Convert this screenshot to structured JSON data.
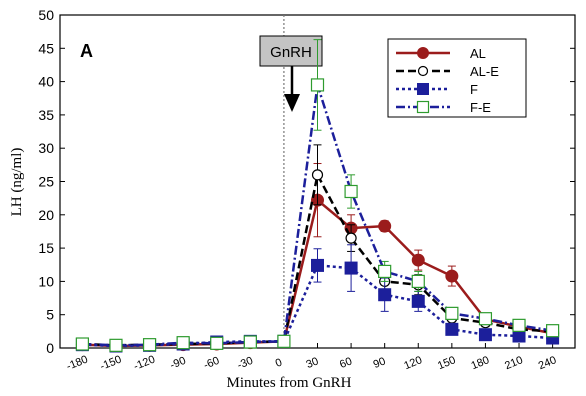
{
  "chart_data": {
    "type": "line",
    "panel_label": "A",
    "xlabel": "Minutes from GnRH",
    "ylabel": "LH (ng/ml)",
    "x_ticks": [
      -180,
      -150,
      -120,
      -90,
      -60,
      -30,
      0,
      30,
      60,
      90,
      120,
      150,
      180,
      210,
      240
    ],
    "y_ticks": [
      0,
      5,
      10,
      15,
      20,
      25,
      30,
      35,
      40,
      45,
      50
    ],
    "xlim": [
      -200,
      260
    ],
    "ylim": [
      0,
      50
    ],
    "annotation": {
      "text": "GnRH",
      "x": 0
    },
    "legend_position": "top-right",
    "series": [
      {
        "name": "AL",
        "color": "#9b1c1c",
        "dash": "solid",
        "marker": "filled-circle",
        "x": [
          -180,
          -150,
          -120,
          -90,
          -60,
          -30,
          0,
          30,
          60,
          90,
          120,
          150,
          180,
          210,
          240
        ],
        "y": [
          0.5,
          0.3,
          0.4,
          0.5,
          0.6,
          0.8,
          1.0,
          22.2,
          18.0,
          18.3,
          13.2,
          10.8,
          4.3,
          3.2,
          2.2
        ],
        "err": [
          0.3,
          0.2,
          0.2,
          0.3,
          0.3,
          0.3,
          0.4,
          5.5,
          2.0,
          0.8,
          1.5,
          1.5,
          0.6,
          0.5,
          0.4
        ]
      },
      {
        "name": "AL-E",
        "color": "#000000",
        "dash": "dash",
        "marker": "open-circle",
        "x": [
          -180,
          -150,
          -120,
          -90,
          -60,
          -30,
          0,
          30,
          60,
          90,
          120,
          150,
          180,
          210,
          240
        ],
        "y": [
          0.6,
          0.4,
          0.5,
          0.6,
          0.7,
          0.9,
          1.0,
          26.0,
          16.5,
          10.0,
          9.5,
          4.5,
          3.8,
          2.8,
          2.5
        ],
        "err": [
          0.3,
          0.2,
          0.2,
          0.3,
          0.3,
          0.3,
          0.4,
          4.5,
          2.0,
          1.5,
          1.5,
          0.8,
          0.6,
          0.5,
          0.4
        ]
      },
      {
        "name": "F",
        "color": "#1c1f9b",
        "dash": "dot",
        "marker": "filled-square",
        "x": [
          -180,
          -150,
          -120,
          -90,
          -60,
          -30,
          0,
          30,
          60,
          90,
          120,
          150,
          180,
          210,
          240
        ],
        "y": [
          0.5,
          0.3,
          0.4,
          0.6,
          0.9,
          1.0,
          1.0,
          12.4,
          12.0,
          8.0,
          7.0,
          2.8,
          2.0,
          1.8,
          1.5
        ],
        "err": [
          0.3,
          0.2,
          0.2,
          0.3,
          0.3,
          0.3,
          0.4,
          2.5,
          3.5,
          2.5,
          1.5,
          0.8,
          0.5,
          0.4,
          0.4
        ]
      },
      {
        "name": "F-E",
        "color": "#1c1f9b",
        "dash": "dashdot",
        "marker": "open-square",
        "marker_color": "#2e9b2e",
        "x": [
          -180,
          -150,
          -120,
          -90,
          -60,
          -30,
          0,
          30,
          60,
          90,
          120,
          150,
          180,
          210,
          240
        ],
        "y": [
          0.6,
          0.4,
          0.5,
          0.8,
          0.7,
          0.9,
          1.0,
          39.5,
          23.5,
          11.5,
          10.0,
          5.2,
          4.4,
          3.4,
          2.6
        ],
        "err": [
          0.3,
          0.2,
          0.2,
          0.3,
          0.3,
          0.3,
          0.4,
          6.8,
          2.5,
          1.5,
          1.5,
          0.8,
          0.6,
          0.5,
          0.4
        ]
      }
    ]
  }
}
